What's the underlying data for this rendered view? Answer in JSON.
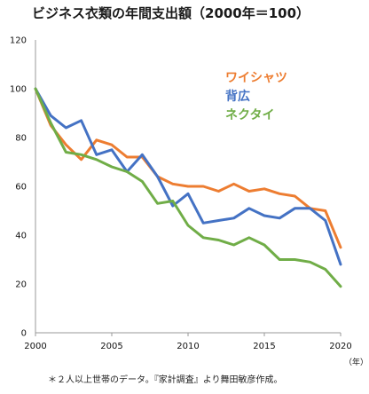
{
  "chart_data": {
    "type": "line",
    "title": "ビジネス衣類の年間支出額（2000年＝100）",
    "x_unit": "（年）",
    "footnote": "＊２人以上世帯のデータ。『家計調査』より舞田敏彦作成。",
    "xlim": [
      2000,
      2020
    ],
    "ylim": [
      0,
      120
    ],
    "x_ticks": [
      2000,
      2005,
      2010,
      2015,
      2020
    ],
    "y_ticks": [
      0,
      20,
      40,
      60,
      80,
      100,
      120
    ],
    "grid": false,
    "legend_position": "top-right",
    "x": [
      2000,
      2001,
      2002,
      2003,
      2004,
      2005,
      2006,
      2007,
      2008,
      2009,
      2010,
      2011,
      2012,
      2013,
      2014,
      2015,
      2016,
      2017,
      2018,
      2019,
      2020
    ],
    "series": [
      {
        "name": "ワイシャツ",
        "color": "#ed7d31",
        "values": [
          100,
          85,
          77,
          71,
          79,
          77,
          72,
          72,
          64,
          61,
          60,
          60,
          58,
          61,
          58,
          59,
          57,
          56,
          51,
          50,
          35
        ]
      },
      {
        "name": "背広",
        "color": "#4472c4",
        "values": [
          100,
          89,
          84,
          87,
          73,
          75,
          66,
          73,
          64,
          52,
          57,
          45,
          46,
          47,
          51,
          48,
          47,
          51,
          51,
          46,
          28
        ]
      },
      {
        "name": "ネクタイ",
        "color": "#70ad47",
        "values": [
          100,
          86,
          74,
          73,
          71,
          68,
          66,
          62,
          53,
          54,
          44,
          39,
          38,
          36,
          39,
          36,
          30,
          30,
          29,
          26,
          19
        ]
      }
    ]
  }
}
